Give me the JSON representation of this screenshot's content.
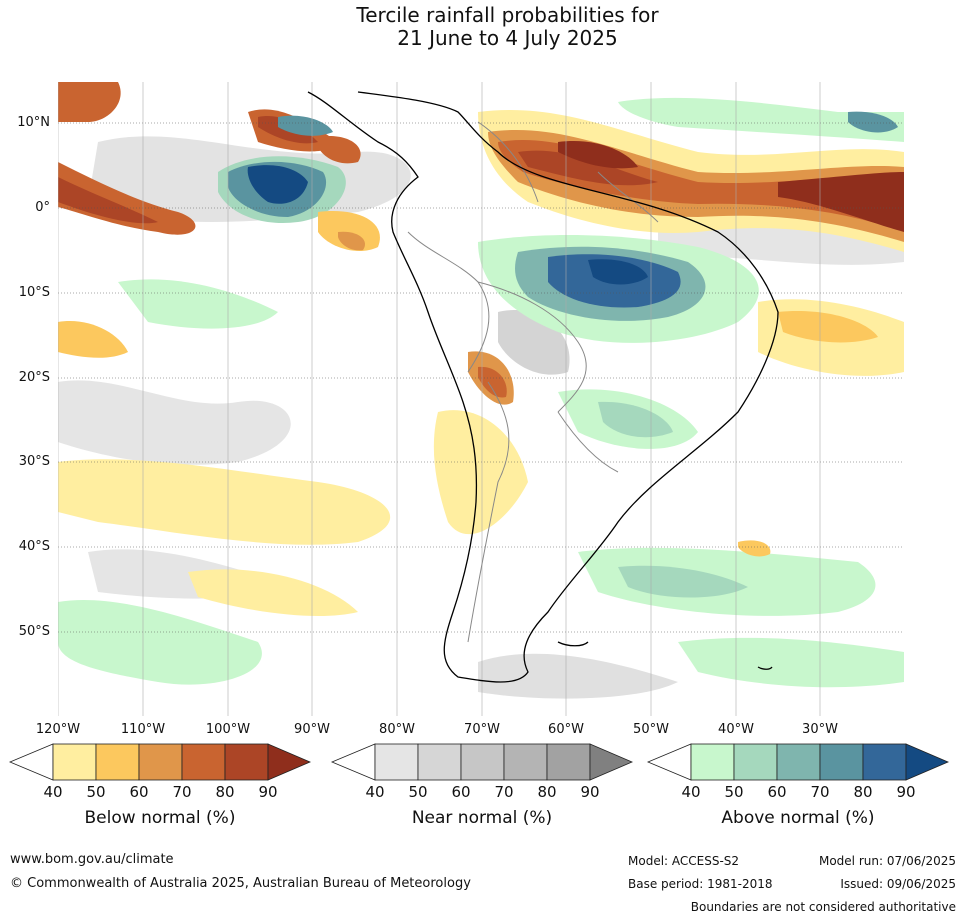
{
  "title_line1": "Tercile rainfall probabilities for",
  "title_line2": "21 June to 4 July 2025",
  "lat_labels": [
    "10°N",
    "0°",
    "10°S",
    "20°S",
    "30°S",
    "40°S",
    "50°S"
  ],
  "lon_labels": [
    "120°W",
    "110°W",
    "100°W",
    "90°W",
    "80°W",
    "70°W",
    "60°W",
    "50°W",
    "40°W",
    "30°W"
  ],
  "legend": {
    "below": {
      "title": "Below normal (%)",
      "ticks": [
        "40",
        "50",
        "60",
        "70",
        "80",
        "90"
      ],
      "colors": [
        "#ffeea0",
        "#fcc85e",
        "#e0964a",
        "#c96430",
        "#ac4526"
      ],
      "extend_color": "#8f2e1c"
    },
    "near": {
      "title": "Near normal (%)",
      "ticks": [
        "40",
        "50",
        "60",
        "70",
        "80",
        "90"
      ],
      "colors": [
        "#e5e5e5",
        "#d6d6d6",
        "#c6c6c6",
        "#b4b4b4",
        "#a2a2a2"
      ],
      "extend_color": "#808080"
    },
    "above": {
      "title": "Above normal (%)",
      "ticks": [
        "40",
        "50",
        "60",
        "70",
        "80",
        "90"
      ],
      "colors": [
        "#c8f7cd",
        "#a5d8bd",
        "#7fb5ae",
        "#5a94a0",
        "#336799"
      ],
      "extend_color": "#144a82"
    }
  },
  "footer": {
    "url": "www.bom.gov.au/climate",
    "copyright": "© Commonwealth of Australia 2025, Australian Bureau of Meteorology",
    "model": "Model: ACCESS-S2",
    "base_period": "Base period: 1981-2018",
    "model_run": "Model run: 07/06/2025",
    "issued": "Issued: 09/06/2025",
    "disclaimer": "Boundaries are not considered authoritative"
  }
}
